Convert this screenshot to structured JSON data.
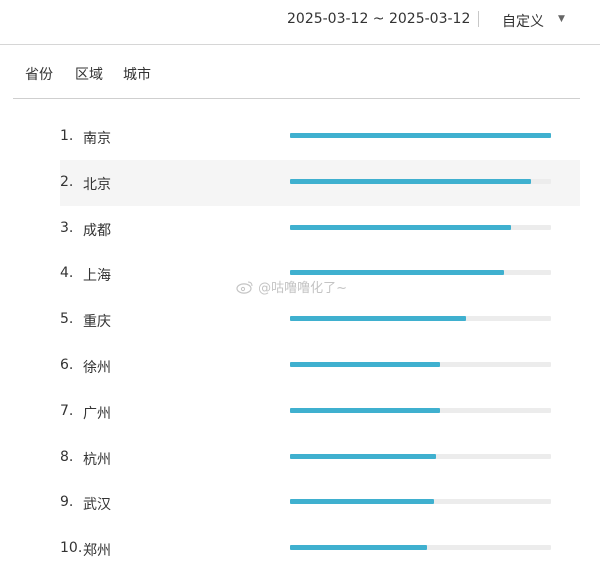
{
  "header": {
    "date_range": "2025-03-12 ~ 2025-03-12",
    "custom_label": "自定义",
    "caret_icon": "caret-down-icon"
  },
  "tabs": [
    {
      "label": "省份"
    },
    {
      "label": "区域"
    },
    {
      "label": "城市"
    }
  ],
  "ranking": [
    {
      "rank": "1.",
      "city": "南京",
      "level": 1.0
    },
    {
      "rank": "2.",
      "city": "北京",
      "level": 0.925
    },
    {
      "rank": "3.",
      "city": "成都",
      "level": 0.845
    },
    {
      "rank": "4.",
      "city": "上海",
      "level": 0.82
    },
    {
      "rank": "5.",
      "city": "重庆",
      "level": 0.675
    },
    {
      "rank": "6.",
      "city": "徐州",
      "level": 0.575
    },
    {
      "rank": "7.",
      "city": "广州",
      "level": 0.575
    },
    {
      "rank": "8.",
      "city": "杭州",
      "level": 0.56
    },
    {
      "rank": "9.",
      "city": "武汉",
      "level": 0.55
    },
    {
      "rank": "10.",
      "city": "郑州",
      "level": 0.525
    }
  ],
  "bar_color": "#3fb0cf",
  "watermark": {
    "text": "@咕噜噜化了~",
    "icon": "weibo-icon"
  }
}
